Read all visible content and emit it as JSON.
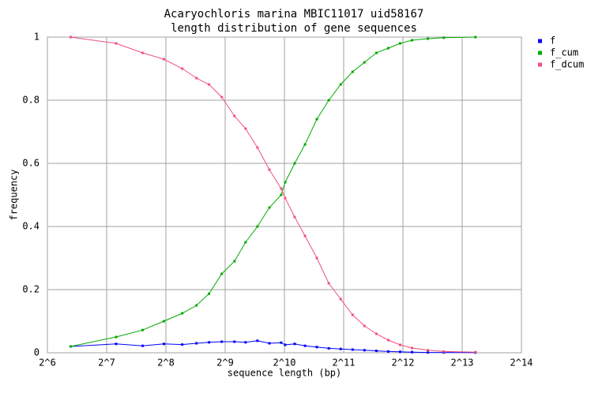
{
  "chart_data": {
    "type": "line",
    "title": "Acaryochloris marina MBIC11017 uid58167",
    "subtitle": "length distribution of gene sequences",
    "xlabel": "sequence length (bp)",
    "ylabel": "frequency",
    "xscale": "log2",
    "grid": true,
    "legend": "right",
    "xlim": [
      64,
      16384
    ],
    "ylim": [
      0,
      1
    ],
    "xticks": [
      {
        "value": 64,
        "label": "2^6"
      },
      {
        "value": 128,
        "label": "2^7"
      },
      {
        "value": 256,
        "label": "2^8"
      },
      {
        "value": 512,
        "label": "2^9"
      },
      {
        "value": 1024,
        "label": "2^10"
      },
      {
        "value": 2048,
        "label": "2^11"
      },
      {
        "value": 4096,
        "label": "2^12"
      },
      {
        "value": 8192,
        "label": "2^13"
      },
      {
        "value": 16384,
        "label": "2^14"
      }
    ],
    "yticks": [
      0,
      0.2,
      0.4,
      0.6,
      0.8,
      1
    ],
    "x": [
      84,
      143,
      195,
      250,
      310,
      366,
      424,
      492,
      571,
      650,
      747,
      859,
      986,
      1033,
      1155,
      1303,
      1497,
      1721,
      1978,
      2274,
      2612,
      3003,
      3452,
      3965,
      4558,
      5485,
      6603,
      9570
    ],
    "series": [
      {
        "name": "f",
        "color": "#0000ff",
        "values": [
          0.02,
          0.028,
          0.022,
          0.028,
          0.026,
          0.03,
          0.033,
          0.035,
          0.035,
          0.033,
          0.038,
          0.03,
          0.032,
          0.025,
          0.028,
          0.022,
          0.018,
          0.014,
          0.012,
          0.01,
          0.008,
          0.006,
          0.004,
          0.003,
          0.002,
          0.001,
          0.001,
          0.0005
        ]
      },
      {
        "name": "f_cum",
        "color": "#00aa00",
        "values": [
          0.02,
          0.05,
          0.072,
          0.1,
          0.125,
          0.15,
          0.187,
          0.25,
          0.29,
          0.35,
          0.4,
          0.46,
          0.5,
          0.54,
          0.6,
          0.66,
          0.74,
          0.8,
          0.85,
          0.89,
          0.92,
          0.95,
          0.965,
          0.98,
          0.99,
          0.995,
          0.998,
          1
        ]
      },
      {
        "name": "f_dcum",
        "color": "#f0507f",
        "values": [
          1,
          0.98,
          0.95,
          0.93,
          0.9,
          0.87,
          0.85,
          0.81,
          0.75,
          0.71,
          0.65,
          0.58,
          0.52,
          0.49,
          0.43,
          0.37,
          0.3,
          0.22,
          0.17,
          0.12,
          0.085,
          0.06,
          0.04,
          0.025,
          0.015,
          0.008,
          0.004,
          0.002
        ]
      }
    ]
  }
}
